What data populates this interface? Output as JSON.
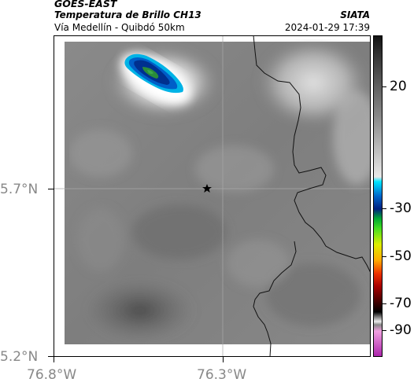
{
  "header": {
    "satellite": "GOES-EAST",
    "product": "Temperatura de Brillo CH13",
    "region": "Vía Medellín - Quibdó 50km",
    "institution": "SIATA",
    "datetime": "2024-01-29 17:39"
  },
  "map": {
    "lat_ticks": [
      "5.7°N",
      "5.2°N"
    ],
    "lon_ticks": [
      "76.8°W",
      "76.3°W"
    ],
    "marker": "star-icon"
  },
  "colorbar": {
    "labels": [
      "20",
      "-30",
      "-50",
      "-70",
      "-90"
    ]
  }
}
